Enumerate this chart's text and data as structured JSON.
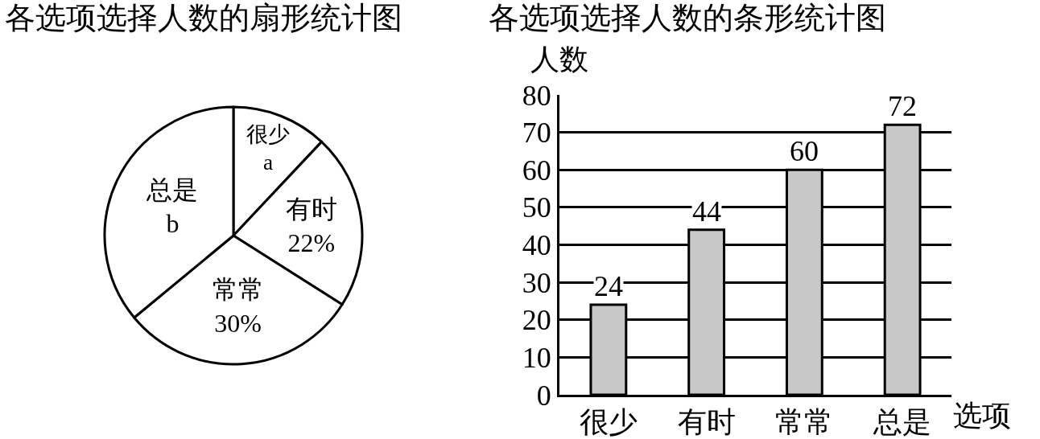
{
  "chart_data": [
    {
      "type": "pie",
      "title": "各选项选择人数的扇形统计图",
      "categories": [
        "很少",
        "有时",
        "常常",
        "总是"
      ],
      "values": [
        12,
        22,
        30,
        36
      ],
      "value_labels": [
        "a",
        "22%",
        "30%",
        "b"
      ],
      "colors": [
        "#ffffff",
        "#ffffff",
        "#ffffff",
        "#ffffff"
      ],
      "legend": false
    },
    {
      "type": "bar",
      "title": "各选项选择人数的条形统计图",
      "categories": [
        "很少",
        "有时",
        "常常",
        "总是"
      ],
      "values": [
        24,
        44,
        60,
        72
      ],
      "color": "#c8c8c8",
      "data_labels": true,
      "xlabel": "选项",
      "ylabel": "人数",
      "ylim": [
        0,
        80
      ],
      "yticks": [
        0,
        10,
        20,
        30,
        40,
        50,
        60,
        70,
        80
      ],
      "grid": "y",
      "legend": false
    }
  ]
}
